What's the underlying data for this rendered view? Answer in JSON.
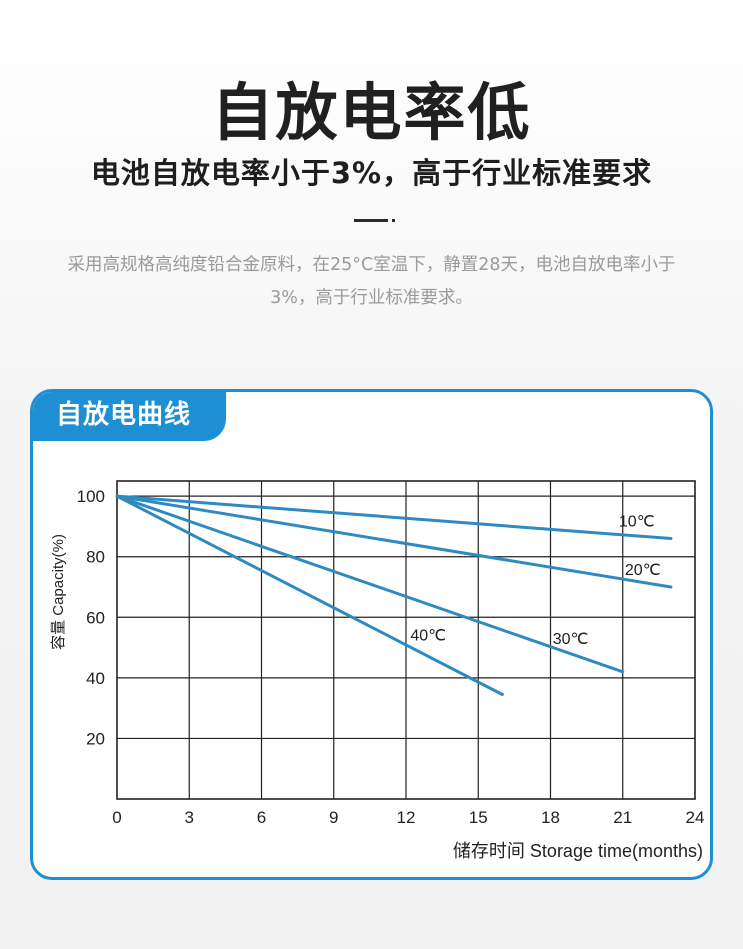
{
  "header": {
    "title": "自放电率低",
    "subtitle": "电池自放电率小于3%，高于行业标准要求",
    "description": "采用高规格高纯度铅合金原料，在25°C室温下，静置28天，电池自放电率小于3%，高于行业标准要求。"
  },
  "card": {
    "label": "自放电曲线"
  },
  "colors": {
    "accent": "#1f8fd3",
    "line": "#2f8ac2",
    "text_dark": "#202020",
    "text_muted": "#9a9a9a"
  },
  "chart_data": {
    "type": "line",
    "title": "",
    "xlabel": "储存时间 Storage time(months)",
    "ylabel": "容量 Capacity(%)",
    "xlim": [
      0,
      24
    ],
    "ylim": [
      0,
      105
    ],
    "xticks": [
      0,
      3,
      6,
      9,
      12,
      15,
      18,
      21,
      24
    ],
    "yticks": [
      20,
      40,
      60,
      80,
      100
    ],
    "grid": true,
    "series": [
      {
        "name": "10℃",
        "x": [
          0,
          23
        ],
        "y": [
          100,
          86
        ]
      },
      {
        "name": "20℃",
        "x": [
          0,
          23
        ],
        "y": [
          100,
          70
        ]
      },
      {
        "name": "30℃",
        "x": [
          0,
          21
        ],
        "y": [
          100,
          42
        ]
      },
      {
        "name": "40℃",
        "x": [
          0,
          16
        ],
        "y": [
          100,
          34.5
        ]
      }
    ]
  }
}
